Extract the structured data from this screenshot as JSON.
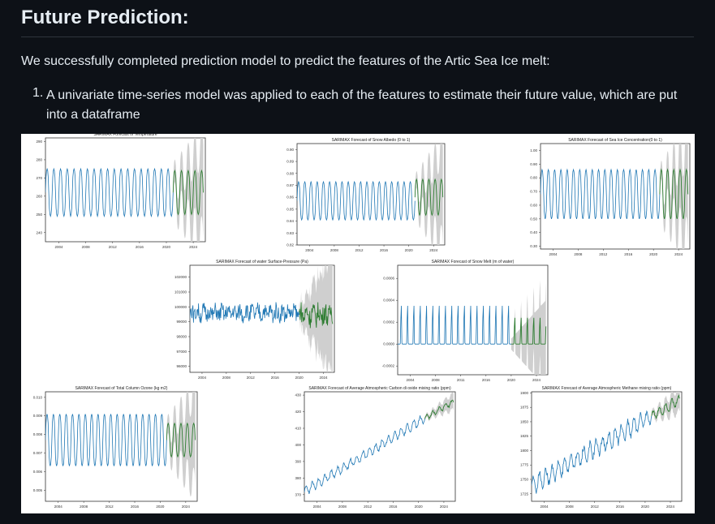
{
  "article": {
    "heading": "Future Prediction:",
    "intro": "We successfully completed prediction model to predict the features of the Artic Sea Ice melt:",
    "list": [
      {
        "number": "1.",
        "text": "A univariate time-series model was applied to each of the features to estimate their future value, which are put into a dataframe"
      }
    ]
  },
  "colors": {
    "page_bg": "#0d1117",
    "text": "#e6edf3",
    "history": "#1f77b4",
    "forecast": "#2e7d32",
    "band": "#cfcfcf"
  },
  "chart_data": [
    {
      "type": "line",
      "title": "SARIMAX Forecast of Temperature",
      "style": "seasonal",
      "ylim": [
        235,
        292
      ],
      "yticks": [
        240,
        250,
        260,
        270,
        280,
        290
      ],
      "xticks": [
        "2004",
        "2008",
        "2012",
        "2016",
        "2020",
        "2024"
      ],
      "history": {
        "x": [
          2002,
          2021
        ],
        "mean": 262,
        "amp": 13
      },
      "forecast": {
        "x": [
          2021,
          2025.5
        ],
        "mean": 262,
        "amp": 12
      },
      "band_width": [
        5,
        26
      ]
    },
    {
      "type": "line",
      "title": "SARIMAX Forecast of  Snow Albedo (0 to 1)",
      "style": "seasonal",
      "ylim": [
        0.82,
        0.905
      ],
      "yticks": [
        0.82,
        0.83,
        0.84,
        0.85,
        0.86,
        0.87,
        0.88,
        0.89,
        0.9
      ],
      "xticks": [
        "2004",
        "2008",
        "2012",
        "2016",
        "2020",
        "2024"
      ],
      "history": {
        "x": [
          2002,
          2021
        ],
        "mean": 0.857,
        "amp": 0.016
      },
      "forecast": {
        "x": [
          2021,
          2025.5
        ],
        "mean": 0.86,
        "amp": 0.015
      },
      "band_width": [
        0.005,
        0.04
      ]
    },
    {
      "type": "line",
      "title": "SARIMAX Forecast of Sea Ice Concentration(0 to 1)",
      "style": "seasonal",
      "ylim": [
        0.28,
        1.05
      ],
      "yticks": [
        0.3,
        0.4,
        0.5,
        0.6,
        0.7,
        0.8,
        0.9,
        1.0
      ],
      "xticks": [
        "2004",
        "2008",
        "2012",
        "2016",
        "2020",
        "2024"
      ],
      "history": {
        "x": [
          2002,
          2021
        ],
        "mean": 0.68,
        "amp": 0.18
      },
      "forecast": {
        "x": [
          2021,
          2025.5
        ],
        "mean": 0.68,
        "amp": 0.18
      },
      "band_width": [
        0.05,
        0.36
      ]
    },
    {
      "type": "line",
      "title": "SARIMAX Forecast of water Surface-Pressure (Pa)",
      "style": "noisy",
      "ylim": [
        95600,
        102800
      ],
      "yticks": [
        96000,
        97000,
        98000,
        99000,
        100000,
        101000,
        102000
      ],
      "xticks": [
        "2004",
        "2008",
        "2012",
        "2016",
        "2020",
        "2024"
      ],
      "history": {
        "x": [
          2002,
          2020
        ],
        "mean": 99600,
        "amp": 550
      },
      "forecast": {
        "x": [
          2020,
          2025.5
        ],
        "mean": 99500,
        "amp": 700
      },
      "band_width": [
        500,
        4000
      ]
    },
    {
      "type": "line",
      "title": "SARIMAX Forecast of  Snow Melt (m of water)",
      "style": "spike",
      "ylim": [
        -0.00028,
        0.00072
      ],
      "yticks": [
        -0.0002,
        0.0,
        0.0002,
        0.0004,
        0.0006
      ],
      "ytick_labels": [
        "-0.0002",
        "0.0000",
        "0.0002",
        "0.0004",
        "0.0006"
      ],
      "xticks": [
        "2004",
        "2008",
        "2011",
        "2016",
        "2020",
        "2024"
      ],
      "history": {
        "x": [
          2002,
          2020
        ],
        "mean": 0.0,
        "amp": 0.00048
      },
      "forecast": {
        "x": [
          2020,
          2025.5
        ],
        "mean": 0.0,
        "amp": 0.00033
      },
      "band_width": [
        5e-05,
        0.0004
      ]
    },
    {
      "type": "line",
      "title": "SARIMAX Forecast of Total Column Ozone (kg m2)",
      "style": "seasonal",
      "ylim": [
        0.0044,
        0.0103
      ],
      "yticks": [
        0.005,
        0.006,
        0.007,
        0.008,
        0.009,
        0.01
      ],
      "ytick_labels": [
        "0.005",
        "0.006",
        "0.007",
        "0.008",
        "0.009",
        "0.010"
      ],
      "xticks": [
        "2004",
        "2008",
        "2012",
        "2016",
        "2020",
        "2024"
      ],
      "history": {
        "x": [
          2002,
          2021
        ],
        "mean": 0.0077,
        "amp": 0.0014
      },
      "forecast": {
        "x": [
          2021,
          2025.5
        ],
        "mean": 0.0077,
        "amp": 0.0009
      },
      "band_width": [
        0.0004,
        0.0025
      ]
    },
    {
      "type": "line",
      "title": "SARIMAX Forecast of Average Atmospheric Carbon di oxide mixing ratio (ppm)",
      "style": "trend",
      "ylim": [
        366,
        432
      ],
      "yticks": [
        370,
        380,
        390,
        400,
        410,
        420,
        430
      ],
      "xticks": [
        "2004",
        "2008",
        "2012",
        "2016",
        "2020",
        "2024"
      ],
      "history": {
        "x": [
          2002,
          2021
        ],
        "start": 372,
        "end": 416,
        "amp": 2.5
      },
      "forecast": {
        "x": [
          2021,
          2025.5
        ],
        "start": 416,
        "end": 426,
        "amp": 1.5
      },
      "band_width": [
        1,
        5
      ]
    },
    {
      "type": "line",
      "title": "SARIMAX Forecast of Average Atmospheric Methane mixing ratio (ppm)",
      "style": "trend",
      "ylim": [
        1712,
        1902
      ],
      "yticks": [
        1725,
        1750,
        1775,
        1800,
        1825,
        1850,
        1875,
        1900
      ],
      "xticks": [
        "2004",
        "2008",
        "2012",
        "2016",
        "2020",
        "2024"
      ],
      "history": {
        "x": [
          2002,
          2021
        ],
        "start": 1740,
        "end": 1860,
        "amp": 14
      },
      "forecast": {
        "x": [
          2021,
          2025.5
        ],
        "start": 1860,
        "end": 1888,
        "amp": 8
      },
      "band_width": [
        5,
        22
      ]
    }
  ]
}
